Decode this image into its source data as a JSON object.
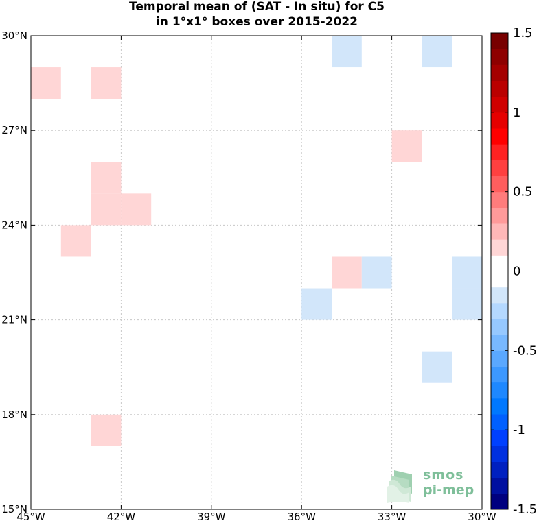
{
  "chart_data": {
    "type": "heatmap",
    "title_line1": "Temporal mean of (SAT - In situ) for C5",
    "title_line2": "in 1°x1° boxes over 2015-2022",
    "x_range": [
      -45,
      -30
    ],
    "y_range": [
      15,
      30
    ],
    "x_ticks": [
      -45,
      -42,
      -39,
      -36,
      -33,
      -30
    ],
    "y_ticks": [
      15,
      18,
      21,
      24,
      27,
      30
    ],
    "x_tick_labels": [
      "45°W",
      "42°W",
      "39°W",
      "36°W",
      "33°W",
      "30°W"
    ],
    "y_tick_labels": [
      "15°N",
      "18°N",
      "21°N",
      "24°N",
      "27°N",
      "30°N"
    ],
    "grid": true,
    "cells": [
      {
        "lon": -35,
        "lat": 29,
        "value": -0.15
      },
      {
        "lon": -32,
        "lat": 29,
        "value": -0.15
      },
      {
        "lon": -45,
        "lat": 28,
        "value": 0.15
      },
      {
        "lon": -43,
        "lat": 28,
        "value": 0.15
      },
      {
        "lon": -33,
        "lat": 26,
        "value": 0.15
      },
      {
        "lon": -43,
        "lat": 25,
        "value": 0.15
      },
      {
        "lon": -43,
        "lat": 24,
        "value": 0.15
      },
      {
        "lon": -42,
        "lat": 24,
        "value": 0.15
      },
      {
        "lon": -44,
        "lat": 23,
        "value": 0.15
      },
      {
        "lon": -35,
        "lat": 22,
        "value": 0.15
      },
      {
        "lon": -34,
        "lat": 22,
        "value": -0.15
      },
      {
        "lon": -31,
        "lat": 22,
        "value": -0.15
      },
      {
        "lon": -36,
        "lat": 21,
        "value": -0.15
      },
      {
        "lon": -31,
        "lat": 21,
        "value": -0.15
      },
      {
        "lon": -32,
        "lat": 19,
        "value": -0.15
      },
      {
        "lon": -43,
        "lat": 17,
        "value": 0.15
      }
    ],
    "colorbar": {
      "range": [
        -1.5,
        1.5
      ],
      "ticks": [
        1.5,
        1,
        0.5,
        0,
        -0.5,
        -1,
        -1.5
      ],
      "tick_labels": [
        "1.5",
        "1",
        "0.5",
        "0",
        "-0.5",
        "-1",
        "-1.5"
      ],
      "levels": 30,
      "colors": [
        "#00007f",
        "#0010a0",
        "#0020c0",
        "#0030e0",
        "#0040ff",
        "#0060ff",
        "#0078ff",
        "#1e88ff",
        "#3c98ff",
        "#5aa8ff",
        "#78b8ff",
        "#96c8ff",
        "#b4d8ff",
        "#d2e6fa",
        "#ffffff",
        "#ffffff",
        "#ffd6d6",
        "#ffb8b8",
        "#ff9a9a",
        "#ff7c7c",
        "#ff5e5e",
        "#ff4040",
        "#ff2222",
        "#ff0000",
        "#e60000",
        "#d00000",
        "#ba0000",
        "#a40000",
        "#8e0000",
        "#780000"
      ]
    }
  },
  "logo": {
    "line1": "smos",
    "line2": "pi-mep"
  }
}
